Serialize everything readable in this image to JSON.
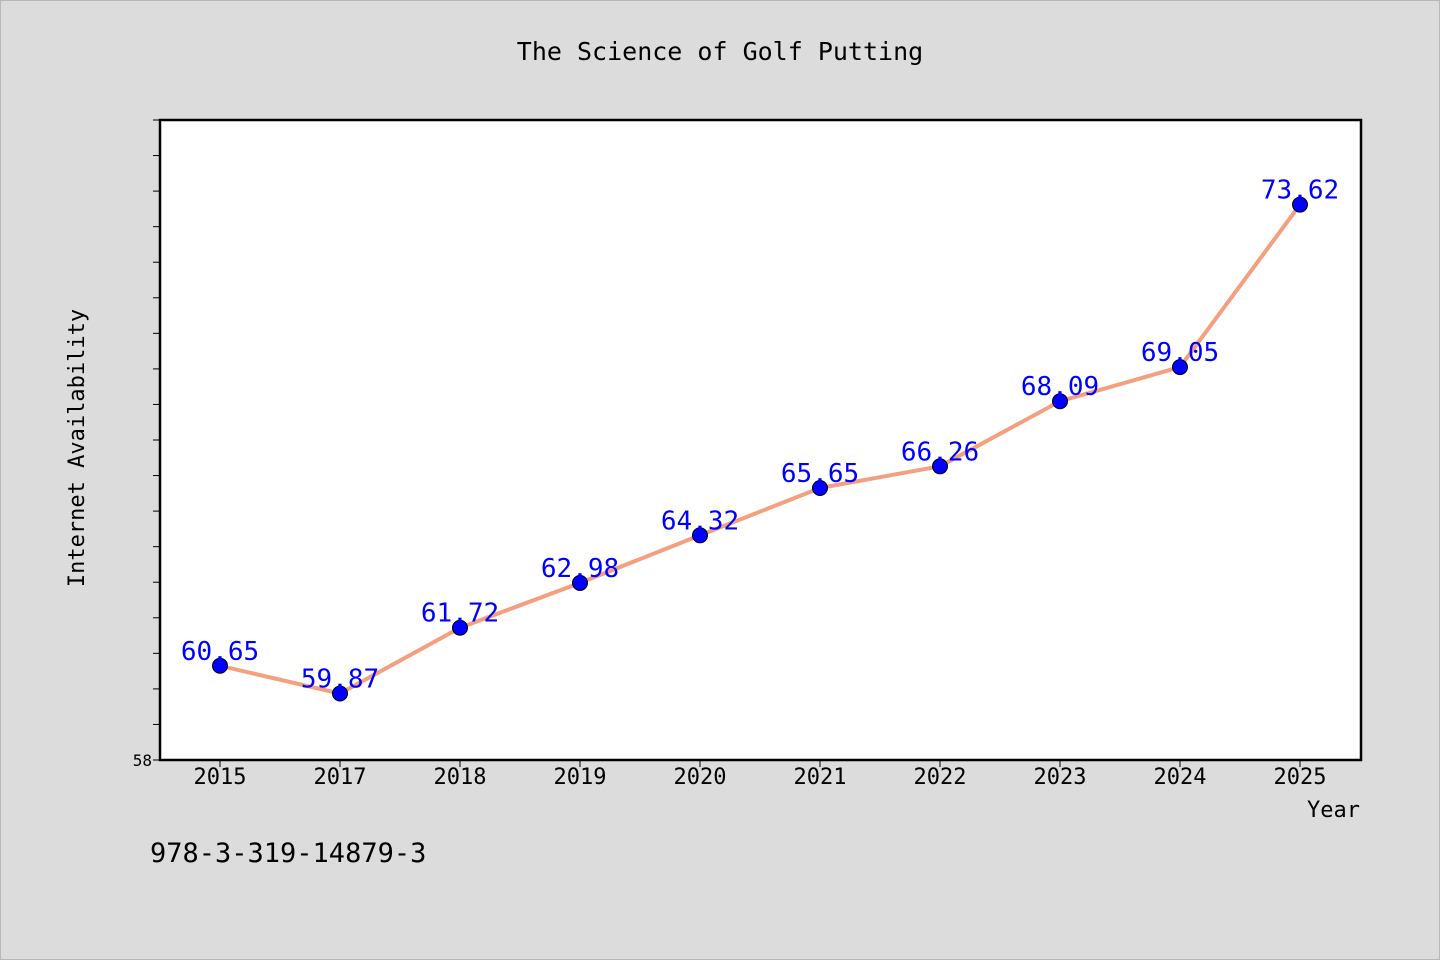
{
  "chart_data": {
    "type": "line",
    "title": "The Science of Golf Putting",
    "xlabel": "Year",
    "ylabel": "Internet Availability",
    "categories": [
      "2015",
      "2017",
      "2018",
      "2019",
      "2020",
      "2021",
      "2022",
      "2023",
      "2024",
      "2025"
    ],
    "series": [
      {
        "values": [
          60.65,
          59.87,
          61.72,
          62.98,
          64.32,
          65.65,
          66.26,
          68.09,
          69.05,
          73.62
        ],
        "data_labels": [
          "60.65",
          "59.87",
          "61.72",
          "62.98",
          "64.32",
          "65.65",
          "66.26",
          "68.09",
          "69.05",
          "73.62"
        ]
      }
    ],
    "y_tick_labels": [
      "58"
    ],
    "ylim": [
      58,
      76
    ],
    "grid": false,
    "legend": false,
    "colors": {
      "background": "#dcdcdc",
      "plot_background": "#ffffff",
      "line": "#f4a07f",
      "marker": "#0000ff",
      "data_label": "#0000ff",
      "axis": "#000000",
      "text": "#000000"
    }
  },
  "annotation": {
    "text": "978-3-319-14879-3"
  }
}
